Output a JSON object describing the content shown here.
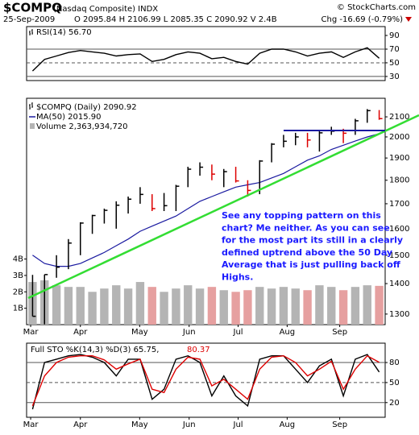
{
  "header": {
    "title": "$COMPQ",
    "subtitle": "(Nasdaq Composite) INDX",
    "source": "© StockCharts.com",
    "date": "25-Sep-2009",
    "quote": "O 2095.84 H 2106.99 L 2085.35 C 2090.92 V 2.4B",
    "change": "Chg -16.69 (-0.79%)"
  },
  "chart_data": [
    {
      "type": "line",
      "x": [
        0,
        1,
        2,
        3,
        4,
        5,
        6,
        7,
        8,
        9,
        10,
        11,
        12,
        13,
        14,
        15,
        16,
        17,
        18,
        19,
        20,
        21,
        22,
        23,
        24,
        25,
        26,
        27,
        28,
        29
      ],
      "xlim": [
        -0.5,
        29.5
      ],
      "ylim": [
        24,
        103
      ],
      "yticks": [
        90,
        70,
        50,
        30
      ],
      "hlines": [
        {
          "value": 70,
          "dash": false
        },
        {
          "value": 50,
          "dash": true
        },
        {
          "value": 30,
          "dash": false
        }
      ],
      "series": [
        {
          "name": "RSI(14) 56.70",
          "color": "#000000",
          "values": [
            38,
            55,
            60,
            65,
            68,
            66,
            64,
            60,
            62,
            63,
            52,
            55,
            62,
            66,
            64,
            56,
            58,
            52,
            48,
            64,
            70,
            70,
            66,
            60,
            64,
            66,
            58,
            66,
            72,
            56.7
          ]
        }
      ]
    },
    {
      "type": "ohlc",
      "log": true,
      "x": [
        0,
        1,
        2,
        3,
        4,
        5,
        6,
        7,
        8,
        9,
        10,
        11,
        12,
        13,
        14,
        15,
        16,
        17,
        18,
        19,
        20,
        21,
        22,
        23,
        24,
        25,
        26,
        27,
        28,
        29
      ],
      "xlim": [
        -0.5,
        29.5
      ],
      "ylim": [
        1267,
        2197
      ],
      "yticks": [
        2100,
        2000,
        1900,
        1800,
        1700,
        1600,
        1500,
        1400,
        1300
      ],
      "xticks": [
        {
          "value": -0.16,
          "label": "Mar"
        },
        {
          "value": 4.0,
          "label": "Apr"
        },
        {
          "value": 8.96,
          "label": "May"
        },
        {
          "value": 13.1,
          "label": "Jun"
        },
        {
          "value": 17.2,
          "label": "Jul"
        },
        {
          "value": 21.3,
          "label": "Aug"
        },
        {
          "value": 25.7,
          "label": "Sep"
        }
      ],
      "series": [
        {
          "name": "$COMPQ (Daily) 2090.92",
          "up_color": "#000000",
          "down_color": "#dd0000",
          "high": [
            1430,
            1431,
            1500,
            1560,
            1625,
            1655,
            1680,
            1710,
            1730,
            1770,
            1740,
            1745,
            1780,
            1860,
            1880,
            1870,
            1850,
            1860,
            1800,
            1890,
            1970,
            2010,
            2020,
            2020,
            2030,
            2050,
            2040,
            2090,
            2140,
            2135
          ],
          "low": [
            1293,
            1268,
            1420,
            1450,
            1500,
            1580,
            1620,
            1600,
            1660,
            1700,
            1670,
            1670,
            1670,
            1770,
            1820,
            1800,
            1770,
            1790,
            1730,
            1740,
            1880,
            1950,
            1960,
            1950,
            1930,
            2010,
            1970,
            2010,
            2070,
            2085
          ],
          "close": [
            1293,
            1431,
            1457,
            1545,
            1622,
            1652,
            1673,
            1694,
            1719,
            1739,
            1680,
            1692,
            1774,
            1849,
            1858,
            1827,
            1838,
            1797,
            1756,
            1886,
            1965,
            1979,
            2000,
            1985,
            2020,
            2028,
            2018,
            2080,
            2132,
            2091
          ]
        },
        {
          "name": "MA(50) 2015.90",
          "color": "#1a1aa0",
          "values": [
            1500,
            1470,
            1460,
            1460,
            1470,
            1490,
            1510,
            1535,
            1560,
            1590,
            1610,
            1630,
            1650,
            1680,
            1710,
            1730,
            1750,
            1770,
            1780,
            1790,
            1810,
            1830,
            1860,
            1890,
            1910,
            1940,
            1960,
            1980,
            2000,
            2015.9
          ]
        }
      ],
      "volume": {
        "name": "Volume 2,363,934,720",
        "up_color": "#b4b4b4",
        "down_color": "#e6a0a0",
        "ylim": [
          0,
          13800000000
        ],
        "yticks": [
          {
            "value": 4000000000,
            "label": "4B"
          },
          {
            "value": 3000000000,
            "label": "3B"
          },
          {
            "value": 2000000000,
            "label": "2B"
          },
          {
            "value": 1000000000,
            "label": "1B"
          }
        ],
        "values": [
          2600000000,
          2700000000,
          2400000000,
          2300000000,
          2300000000,
          2000000000,
          2200000000,
          2400000000,
          2200000000,
          2600000000,
          2300000000,
          2000000000,
          2200000000,
          2400000000,
          2200000000,
          2300000000,
          2100000000,
          2000000000,
          2100000000,
          2300000000,
          2200000000,
          2300000000,
          2200000000,
          2100000000,
          2400000000,
          2300000000,
          2100000000,
          2300000000,
          2400000000,
          2363934720
        ]
      },
      "annotation": [
        "See any topping pattern on this",
        "chart? Me neither. As you can see",
        "for the most part its still in a clearly",
        "defined uptrend above the 50 Day",
        "Average that is just pulling back off",
        "Highs."
      ]
    },
    {
      "type": "line",
      "x": [
        0,
        1,
        2,
        3,
        4,
        5,
        6,
        7,
        8,
        9,
        10,
        11,
        12,
        13,
        14,
        15,
        16,
        17,
        18,
        19,
        20,
        21,
        22,
        23,
        24,
        25,
        26,
        27,
        28,
        29
      ],
      "xlim": [
        -0.5,
        29.5
      ],
      "ylim": [
        -2,
        109
      ],
      "yticks": [
        80,
        50,
        20
      ],
      "xticks": [
        {
          "value": -0.16,
          "label": "Mar"
        },
        {
          "value": 4.0,
          "label": "Apr"
        },
        {
          "value": 8.96,
          "label": "May"
        },
        {
          "value": 13.1,
          "label": "Jun"
        },
        {
          "value": 17.2,
          "label": "Jul"
        },
        {
          "value": 21.3,
          "label": "Aug"
        },
        {
          "value": 25.7,
          "label": "Sep"
        }
      ],
      "hlines": [
        {
          "value": 80,
          "dash": false
        },
        {
          "value": 50,
          "dash": true
        },
        {
          "value": 20,
          "dash": false
        }
      ],
      "series": [
        {
          "name": "Full STO %K(14,3) %D(3) 65.75,",
          "color": "#000000",
          "values": [
            10,
            80,
            85,
            90,
            92,
            88,
            80,
            60,
            85,
            85,
            25,
            40,
            85,
            90,
            80,
            30,
            60,
            30,
            15,
            85,
            90,
            90,
            70,
            50,
            75,
            85,
            30,
            85,
            92,
            65.75
          ]
        },
        {
          "name": "80.37",
          "color": "#dd0000",
          "values": [
            15,
            60,
            80,
            88,
            90,
            90,
            84,
            70,
            78,
            85,
            40,
            35,
            70,
            88,
            85,
            45,
            55,
            40,
            25,
            70,
            88,
            90,
            80,
            60,
            70,
            82,
            40,
            70,
            90,
            80.37
          ]
        }
      ]
    }
  ]
}
